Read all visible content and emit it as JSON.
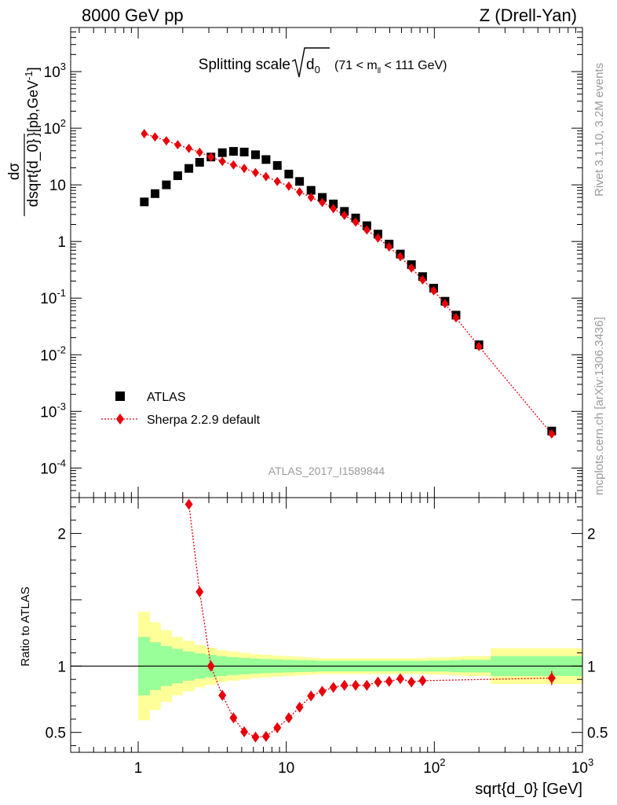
{
  "header": {
    "left": "8000 GeV pp",
    "right": "Z (Drell-Yan)",
    "side_top": "Rivet 3.1.10,  3.2M events",
    "side_bottom": "mcplots.cern.ch [arXiv:1306.3436]",
    "analysis_id": "ATLAS_2017_I1589844"
  },
  "colors": {
    "data": "#000000",
    "mc": "#e8000b",
    "band_inner": "#99ff99",
    "band_outer": "#ffff99"
  },
  "chart_data": [
    {
      "type": "scatter",
      "title": "Splitting scale",
      "title_parts": {
        "main": "Splitting scale",
        "sqrt": "d",
        "sqrt_sub": "0",
        "range_pre": "(71 < m",
        "range_sub": "ll",
        "range_post": " < 111 GeV)"
      },
      "ylabel_parts": {
        "num": "dσ",
        "den": "dsqrt{d_0}",
        "unit": "[pb,GeV",
        "unit_sup": "-1",
        "unit_close": "]"
      },
      "x_scale": "log",
      "y_scale": "log",
      "xlim": [
        0.35,
        1000
      ],
      "ylim": [
        3e-05,
        6000
      ],
      "y_ticks": [
        {
          "value": 0.0001,
          "base": "10",
          "exp": "-4"
        },
        {
          "value": 0.001,
          "base": "10",
          "exp": "-3"
        },
        {
          "value": 0.01,
          "base": "10",
          "exp": "-2"
        },
        {
          "value": 0.1,
          "base": "10",
          "exp": "-1"
        },
        {
          "value": 1,
          "base": "1",
          "exp": ""
        },
        {
          "value": 10,
          "base": "10",
          "exp": ""
        },
        {
          "value": 100,
          "base": "10",
          "exp": "2"
        },
        {
          "value": 1000,
          "base": "10",
          "exp": "3"
        }
      ],
      "legend_position": "lower-left",
      "series": [
        {
          "name": "ATLAS",
          "marker": "square",
          "x": [
            1.1,
            1.3,
            1.55,
            1.85,
            2.2,
            2.6,
            3.1,
            3.7,
            4.4,
            5.2,
            6.2,
            7.3,
            8.7,
            10.4,
            12.3,
            14.7,
            17.5,
            20.8,
            24.7,
            29.4,
            35,
            41.6,
            49.5,
            58.9,
            70,
            83.3,
            99,
            118,
            140,
            200,
            620
          ],
          "values": [
            5,
            7,
            10,
            14.5,
            19.5,
            25,
            31,
            37,
            39,
            38,
            34,
            28,
            22,
            15.5,
            11.5,
            8,
            6,
            4.6,
            3.4,
            2.6,
            1.9,
            1.35,
            0.9,
            0.6,
            0.39,
            0.24,
            0.15,
            0.088,
            0.05,
            0.015,
            0.00045
          ]
        },
        {
          "name": "Sherpa 2.2.9 default",
          "marker": "diamond",
          "x": [
            1.1,
            1.3,
            1.55,
            1.85,
            2.2,
            2.6,
            3.1,
            3.7,
            4.4,
            5.2,
            6.2,
            7.3,
            8.7,
            10.4,
            12.3,
            14.7,
            17.5,
            20.8,
            24.7,
            29.4,
            35,
            41.6,
            49.5,
            58.9,
            70,
            83.3,
            99,
            118,
            140,
            200,
            620
          ],
          "values": [
            80,
            70,
            60,
            51,
            44,
            37.5,
            31,
            26,
            22.5,
            19.5,
            16.5,
            14,
            11.5,
            9.5,
            7.5,
            6,
            4.9,
            3.8,
            2.9,
            2.2,
            1.6,
            1.15,
            0.8,
            0.54,
            0.34,
            0.21,
            0.135,
            0.08,
            0.045,
            0.014,
            0.0004
          ]
        }
      ]
    },
    {
      "type": "line",
      "ylabel": "Ratio to ATLAS",
      "xlabel": "sqrt{d_0} [GeV]",
      "x_scale": "log",
      "xlim": [
        0.35,
        1000
      ],
      "ylim": [
        0.35,
        2.27
      ],
      "x_ticks": [
        {
          "value": 1,
          "base": "1",
          "exp": ""
        },
        {
          "value": 10,
          "base": "10",
          "exp": ""
        },
        {
          "value": 100,
          "base": "10",
          "exp": "2"
        },
        {
          "value": 1000,
          "base": "10",
          "exp": "3"
        }
      ],
      "y_ticks": [
        {
          "value": 0.5,
          "label": "0.5"
        },
        {
          "value": 1,
          "label": "1"
        },
        {
          "value": 2,
          "label": "2"
        }
      ],
      "reference_line": 1,
      "bands": {
        "edges": [
          1.0,
          1.2,
          1.42,
          1.69,
          2.0,
          2.4,
          2.85,
          3.4,
          4.0,
          4.8,
          5.7,
          6.8,
          8.0,
          9.5,
          11.3,
          13.5,
          16,
          19,
          22.6,
          27,
          32,
          38,
          45.2,
          53.8,
          64,
          76,
          90.5,
          108,
          128,
          152,
          240,
          1000
        ],
        "outer": [
          0.41,
          0.33,
          0.27,
          0.22,
          0.19,
          0.16,
          0.14,
          0.12,
          0.11,
          0.1,
          0.09,
          0.085,
          0.08,
          0.075,
          0.07,
          0.065,
          0.06,
          0.06,
          0.06,
          0.06,
          0.06,
          0.06,
          0.06,
          0.06,
          0.06,
          0.06,
          0.065,
          0.065,
          0.07,
          0.075,
          0.135
        ],
        "inner": [
          0.22,
          0.18,
          0.15,
          0.13,
          0.11,
          0.095,
          0.085,
          0.075,
          0.068,
          0.062,
          0.057,
          0.053,
          0.05,
          0.048,
          0.045,
          0.043,
          0.04,
          0.04,
          0.04,
          0.04,
          0.04,
          0.04,
          0.04,
          0.04,
          0.04,
          0.04,
          0.042,
          0.042,
          0.045,
          0.048,
          0.075
        ]
      },
      "series": [
        {
          "name": "Sherpa 2.2.9 default",
          "x": [
            2.2,
            2.6,
            3.1,
            3.7,
            4.4,
            5.2,
            6.2,
            7.3,
            8.7,
            10.4,
            12.3,
            14.7,
            17.5,
            20.8,
            24.7,
            29.4,
            35,
            41.6,
            49.5,
            58.9,
            70,
            83.3,
            620
          ],
          "values": [
            2.22,
            1.56,
            1.0,
            0.78,
            0.61,
            0.505,
            0.465,
            0.47,
            0.535,
            0.61,
            0.69,
            0.775,
            0.81,
            0.84,
            0.855,
            0.855,
            0.855,
            0.88,
            0.885,
            0.905,
            0.88,
            0.89,
            0.91
          ]
        }
      ]
    }
  ]
}
